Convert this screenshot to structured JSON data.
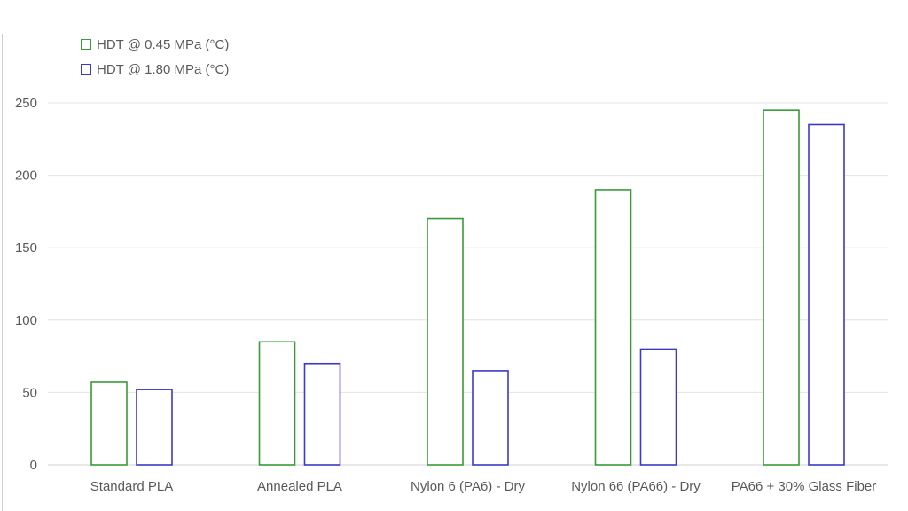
{
  "chart_data": {
    "type": "bar",
    "title": "",
    "xlabel": "",
    "ylabel": "",
    "ylim": [
      0,
      250
    ],
    "yticks": [
      0,
      50,
      100,
      150,
      200,
      250
    ],
    "grid": true,
    "legend_position": "top-left",
    "categories": [
      "Standard PLA",
      "Annealed PLA",
      "Nylon 6 (PA6) - Dry",
      "Nylon 66 (PA66) - Dry",
      "PA66 + 30% Glass Fiber"
    ],
    "series": [
      {
        "name": "HDT @ 0.45 MPa (°C)",
        "color": "#3a9a3a",
        "values": [
          57,
          85,
          170,
          190,
          245
        ]
      },
      {
        "name": "HDT @ 1.80 MPa (°C)",
        "color": "#3a3ac8",
        "values": [
          52,
          70,
          65,
          80,
          235
        ]
      }
    ]
  },
  "legend": {
    "items": [
      {
        "label": "HDT @ 0.45 MPa (°C)",
        "color": "#3a9a3a"
      },
      {
        "label": "HDT @ 1.80 MPa (°C)",
        "color": "#3a3ac8"
      }
    ]
  },
  "colors": {
    "grid": "#e4e4e4",
    "axis": "#d0d0d0",
    "text": "#595959"
  }
}
